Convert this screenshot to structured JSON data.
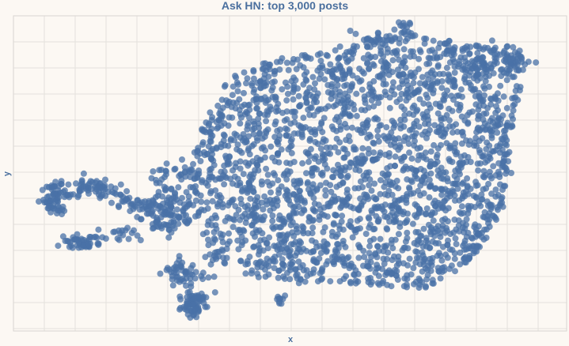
{
  "chart_data": {
    "type": "scatter",
    "title": "Ask HN: top 3,000 posts",
    "xlabel": "x",
    "ylabel": "y",
    "point_count": 3000,
    "grid": true,
    "legend": "none",
    "x_ticks_labeled": false,
    "y_ticks_labeled": false,
    "colors": {
      "background": "#fcf8f3",
      "grid": "#e4e1dc",
      "frame": "#d8d5d0",
      "point": "#4a72a7",
      "title": "#4a6f9e",
      "axis_label": "#4a6f9e"
    }
  }
}
